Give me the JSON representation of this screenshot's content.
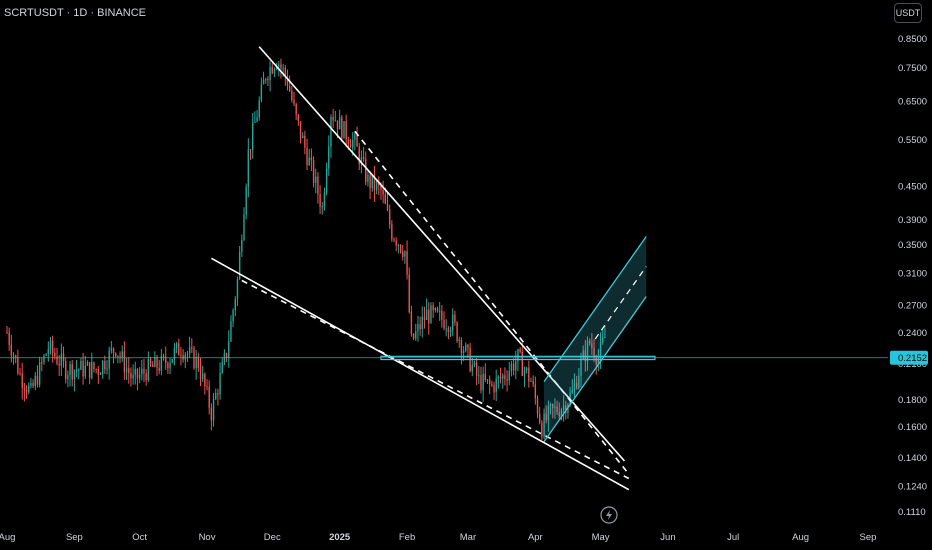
{
  "header": {
    "symbol": "SCRTUSDT · 1D · BINANCE",
    "currency": "USDT"
  },
  "colors": {
    "background": "#000000",
    "up": "#26a69a",
    "down": "#ef5350",
    "trendline": "#ffffff",
    "channel": "#3fc9d6",
    "price_line": "#26c6da",
    "axis_text": "#d1d4dc"
  },
  "icons": {
    "bottom": "lightning-icon"
  },
  "chart_data": {
    "type": "candlestick",
    "symbol": "SCRTUSDT",
    "interval": "1D",
    "exchange": "BINANCE",
    "y_scale": "log",
    "ylim": [
      0.108,
      0.92
    ],
    "y_ticks": [
      "0.8500",
      "0.7500",
      "0.6500",
      "0.5500",
      "0.4500",
      "0.3900",
      "0.3500",
      "0.3100",
      "0.2700",
      "0.2400",
      "0.2100",
      "0.1800",
      "0.1600",
      "0.1400",
      "0.1240",
      "0.1110"
    ],
    "x_ticks": [
      "Aug",
      "Sep",
      "Oct",
      "Nov",
      "Dec",
      "2025",
      "Feb",
      "Mar",
      "Apr",
      "May",
      "Jun",
      "Jul",
      "Aug",
      "Sep"
    ],
    "x_range": [
      "2024-08-01",
      "2025-09-01"
    ],
    "current_price": "0.2152",
    "price_series_approx": [
      [
        "2024-08-01",
        0.24
      ],
      [
        "2024-08-07",
        0.2
      ],
      [
        "2024-08-12",
        0.185
      ],
      [
        "2024-08-20",
        0.225
      ],
      [
        "2024-08-28",
        0.205
      ],
      [
        "2024-09-05",
        0.205
      ],
      [
        "2024-09-12",
        0.205
      ],
      [
        "2024-09-20",
        0.225
      ],
      [
        "2024-09-28",
        0.195
      ],
      [
        "2024-10-05",
        0.205
      ],
      [
        "2024-10-12",
        0.21
      ],
      [
        "2024-10-20",
        0.225
      ],
      [
        "2024-10-28",
        0.21
      ],
      [
        "2024-11-03",
        0.17
      ],
      [
        "2024-11-10",
        0.22
      ],
      [
        "2024-11-15",
        0.3
      ],
      [
        "2024-11-20",
        0.52
      ],
      [
        "2024-11-28",
        0.73
      ],
      [
        "2024-12-03",
        0.78
      ],
      [
        "2024-12-08",
        0.71
      ],
      [
        "2024-12-12",
        0.6
      ],
      [
        "2024-12-18",
        0.5
      ],
      [
        "2024-12-24",
        0.41
      ],
      [
        "2024-12-28",
        0.62
      ],
      [
        "2025-01-03",
        0.57
      ],
      [
        "2025-01-08",
        0.54
      ],
      [
        "2025-01-14",
        0.46
      ],
      [
        "2025-01-20",
        0.44
      ],
      [
        "2025-01-25",
        0.37
      ],
      [
        "2025-01-31",
        0.34
      ],
      [
        "2025-02-03",
        0.23
      ],
      [
        "2025-02-10",
        0.26
      ],
      [
        "2025-02-16",
        0.255
      ],
      [
        "2025-02-22",
        0.25
      ],
      [
        "2025-02-28",
        0.22
      ],
      [
        "2025-03-06",
        0.195
      ],
      [
        "2025-03-12",
        0.19
      ],
      [
        "2025-03-18",
        0.2
      ],
      [
        "2025-03-24",
        0.215
      ],
      [
        "2025-03-30",
        0.195
      ],
      [
        "2025-04-04",
        0.16
      ],
      [
        "2025-04-08",
        0.17
      ],
      [
        "2025-04-14",
        0.175
      ],
      [
        "2025-04-18",
        0.185
      ],
      [
        "2025-04-22",
        0.21
      ],
      [
        "2025-04-26",
        0.23
      ],
      [
        "2025-04-30",
        0.215
      ],
      [
        "2025-05-03",
        0.235
      ]
    ],
    "drawings": [
      {
        "type": "trendline",
        "style": "solid",
        "from": [
          "2024-11-25",
          0.82
        ],
        "to": [
          "2025-05-12",
          0.138
        ]
      },
      {
        "type": "trendline",
        "style": "dashed",
        "from": [
          "2025-01-08",
          0.57
        ],
        "to": [
          "2025-05-13",
          0.132
        ]
      },
      {
        "type": "trendline",
        "style": "solid",
        "from": [
          "2024-11-03",
          0.33
        ],
        "to": [
          "2025-05-14",
          0.122
        ]
      },
      {
        "type": "trendline",
        "style": "dashed",
        "from": [
          "2024-11-17",
          0.3
        ],
        "to": [
          "2025-05-14",
          0.128
        ]
      },
      {
        "type": "parallel_channel",
        "style": "rising",
        "from": [
          "2025-04-05",
          0.15
        ],
        "to": [
          "2025-05-22",
          0.28
        ]
      },
      {
        "type": "horizontal_zone",
        "from": "2025-01-20",
        "to": "2025-05-26",
        "value": 0.215
      }
    ]
  }
}
